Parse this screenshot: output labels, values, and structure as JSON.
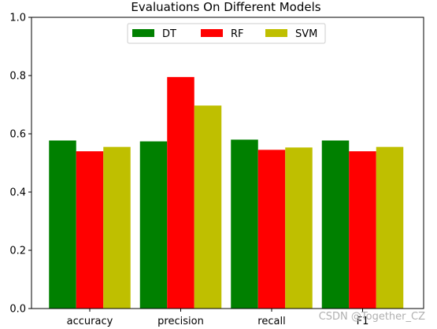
{
  "chart_data": {
    "type": "bar",
    "title": "Evaluations On Different Models",
    "xlabel": "",
    "ylabel": "",
    "categories": [
      "accuracy",
      "precision",
      "recall",
      "F1"
    ],
    "series": [
      {
        "name": "DT",
        "color": "#008000",
        "values": [
          0.577,
          0.574,
          0.58,
          0.577
        ]
      },
      {
        "name": "RF",
        "color": "#ff0000",
        "values": [
          0.54,
          0.795,
          0.545,
          0.54
        ]
      },
      {
        "name": "SVM",
        "color": "#bfbf00",
        "values": [
          0.555,
          0.697,
          0.553,
          0.555
        ]
      }
    ],
    "ylim": [
      0,
      1.0
    ],
    "yticks": [
      "0.0",
      "0.2",
      "0.4",
      "0.6",
      "0.8",
      "1.0"
    ],
    "legend_position": "top-center",
    "grid": false
  },
  "watermark": "CSDN @Together_CZ"
}
